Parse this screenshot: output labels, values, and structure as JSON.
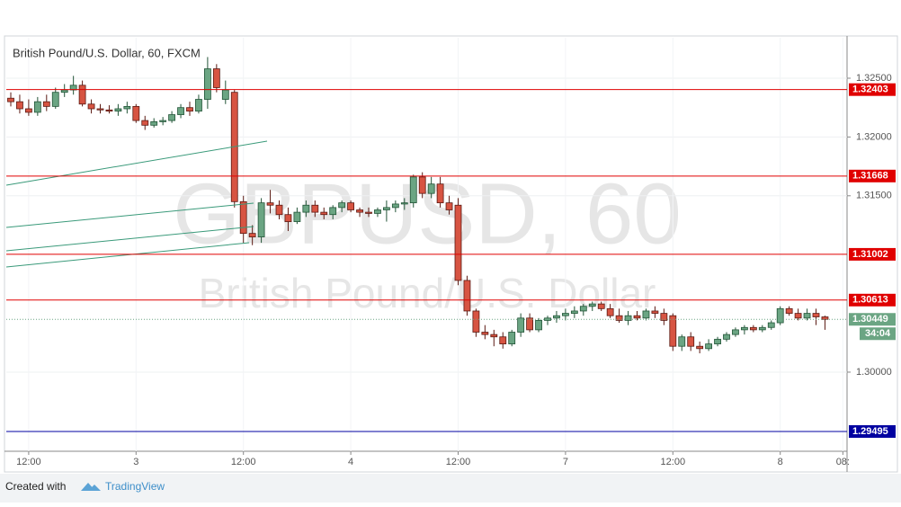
{
  "chart_data": {
    "type": "candlestick",
    "title": "British Pound/U.S. Dollar, 60, FXCM",
    "watermark": "GBPUSD, 60",
    "watermark_subtitle": "British Pound/U.S. Dollar",
    "categories": [
      null,
      null,
      "12:00",
      null,
      null,
      null,
      null,
      null,
      null,
      null,
      null,
      null,
      null,
      null,
      "3",
      null,
      null,
      null,
      null,
      null,
      null,
      null,
      null,
      null,
      null,
      null,
      "12:00",
      null,
      null,
      null,
      null,
      null,
      null,
      null,
      null,
      null,
      null,
      null,
      "4",
      null,
      null,
      null,
      null,
      null,
      null,
      null,
      null,
      null,
      null,
      null,
      "12:00",
      null,
      null,
      null,
      null,
      null,
      null,
      null,
      null,
      null,
      null,
      null,
      "7",
      null,
      null,
      null,
      null,
      null,
      null,
      null,
      null,
      null,
      null,
      null,
      "12:00",
      null,
      null,
      null,
      null,
      null,
      null,
      null,
      null,
      null,
      null,
      null,
      "8",
      null,
      null,
      null,
      null,
      null,
      null,
      "08:"
    ],
    "open": [
      1.3233,
      1.323,
      1.3224,
      1.3221,
      1.323,
      1.3226,
      1.3238,
      1.324,
      1.3244,
      1.3228,
      1.3224,
      1.3223,
      1.3222,
      1.3224,
      1.3226,
      1.3214,
      1.321,
      1.3213,
      1.3214,
      1.3219,
      1.3225,
      1.3222,
      1.3232,
      1.3258,
      1.3232,
      1.3238,
      1.3145,
      1.3118,
      1.3115,
      1.3144,
      1.3142,
      1.3134,
      1.3128,
      1.3136,
      1.3142,
      1.3136,
      1.3134,
      1.314,
      1.3144,
      1.3138,
      1.3136,
      1.3135,
      1.3138,
      1.314,
      1.3143,
      1.3144,
      1.3166,
      1.3152,
      1.316,
      1.3144,
      1.3142,
      1.3078,
      1.3052,
      1.3034,
      1.3032,
      1.303,
      1.3024,
      1.3034,
      1.3046,
      1.3036,
      1.3044,
      1.3046,
      1.3048,
      1.305,
      1.3052,
      1.3056,
      1.3058,
      1.3054,
      1.3048,
      1.3044,
      1.3048,
      1.3046,
      1.3052,
      1.305,
      1.3048,
      1.3022,
      1.303,
      1.3022,
      1.302,
      1.3024,
      1.3028,
      1.3032,
      1.3036,
      1.3038,
      1.3036,
      1.3038,
      1.3042,
      1.3054,
      1.305,
      1.3046,
      1.305,
      1.3047,
      null,
      null
    ],
    "high": [
      1.3238,
      1.3236,
      1.3232,
      1.3234,
      1.3236,
      1.3242,
      1.3245,
      1.3252,
      1.3248,
      1.3232,
      1.3228,
      1.3227,
      1.3228,
      1.323,
      1.3228,
      1.3218,
      1.3216,
      1.3217,
      1.3222,
      1.3228,
      1.323,
      1.3236,
      1.3268,
      1.3262,
      1.3248,
      1.324,
      1.315,
      1.3125,
      1.3148,
      1.3155,
      1.3146,
      1.314,
      1.314,
      1.3146,
      1.3146,
      1.314,
      1.3142,
      1.3146,
      1.3146,
      1.314,
      1.314,
      1.314,
      1.3146,
      1.3146,
      1.3148,
      1.3168,
      1.317,
      1.3166,
      1.3166,
      1.315,
      1.3148,
      1.3082,
      1.3054,
      1.304,
      1.3036,
      1.3034,
      1.3036,
      1.305,
      1.305,
      1.3046,
      1.3048,
      1.3052,
      1.3054,
      1.3056,
      1.3058,
      1.306,
      1.306,
      1.3058,
      1.3054,
      1.3052,
      1.3052,
      1.3054,
      1.3056,
      1.3054,
      1.305,
      1.3032,
      1.3034,
      1.3026,
      1.3028,
      1.303,
      1.3034,
      1.3038,
      1.304,
      1.304,
      1.304,
      1.3044,
      1.3056,
      1.3056,
      1.3054,
      1.3054,
      1.3054,
      1.3048,
      null,
      null
    ],
    "low": [
      1.3226,
      1.322,
      1.3218,
      1.3218,
      1.3222,
      1.3224,
      1.3234,
      1.3236,
      1.3226,
      1.322,
      1.322,
      1.322,
      1.3218,
      1.322,
      1.3212,
      1.3206,
      1.3208,
      1.321,
      1.3212,
      1.3216,
      1.3218,
      1.322,
      1.3224,
      1.3238,
      1.3228,
      1.314,
      1.311,
      1.3108,
      1.311,
      1.3135,
      1.313,
      1.312,
      1.3126,
      1.3132,
      1.3132,
      1.313,
      1.313,
      1.3136,
      1.3136,
      1.3132,
      1.3132,
      1.3132,
      1.3128,
      1.3136,
      1.3138,
      1.314,
      1.3148,
      1.3148,
      1.314,
      1.3134,
      1.3074,
      1.3048,
      1.303,
      1.3028,
      1.3022,
      1.302,
      1.3022,
      1.303,
      1.3034,
      1.3034,
      1.304,
      1.3042,
      1.3044,
      1.3046,
      1.3048,
      1.3052,
      1.3052,
      1.3046,
      1.3042,
      1.304,
      1.3044,
      1.3044,
      1.3046,
      1.304,
      1.3018,
      1.3018,
      1.3018,
      1.3016,
      1.3018,
      1.3022,
      1.3026,
      1.303,
      1.3032,
      1.3034,
      1.3034,
      1.3036,
      1.304,
      1.3048,
      1.3044,
      1.3044,
      1.304,
      1.3036,
      null,
      null
    ],
    "close": [
      1.323,
      1.3224,
      1.3221,
      1.323,
      1.3226,
      1.3238,
      1.324,
      1.3244,
      1.3228,
      1.3224,
      1.3223,
      1.3222,
      1.3224,
      1.3226,
      1.3214,
      1.321,
      1.3213,
      1.3214,
      1.3219,
      1.3225,
      1.3222,
      1.3232,
      1.3258,
      1.3242,
      1.324,
      1.3145,
      1.3118,
      1.3115,
      1.3144,
      1.3142,
      1.3134,
      1.3128,
      1.3136,
      1.3142,
      1.3136,
      1.3134,
      1.314,
      1.3144,
      1.3138,
      1.3136,
      1.3135,
      1.3138,
      1.314,
      1.3143,
      1.3144,
      1.3166,
      1.3152,
      1.316,
      1.3144,
      1.3138,
      1.3078,
      1.3052,
      1.3034,
      1.3032,
      1.303,
      1.3024,
      1.3034,
      1.3046,
      1.3036,
      1.3044,
      1.3046,
      1.3048,
      1.305,
      1.3052,
      1.3056,
      1.3058,
      1.3054,
      1.3048,
      1.3044,
      1.3048,
      1.3046,
      1.3052,
      1.305,
      1.3044,
      1.3022,
      1.303,
      1.3022,
      1.302,
      1.3024,
      1.3028,
      1.3032,
      1.3036,
      1.3038,
      1.3036,
      1.3038,
      1.3042,
      1.3054,
      1.305,
      1.3046,
      1.305,
      1.3047,
      1.30449,
      null,
      null
    ],
    "up_color": "#6ba583",
    "down_color": "#d75442",
    "ylim": [
      1.29327,
      1.32844
    ],
    "yticks": [
      {
        "value": 1.325,
        "label": "1.32500"
      },
      {
        "value": 1.32,
        "label": "1.32000"
      },
      {
        "value": 1.315,
        "label": "1.31500"
      },
      {
        "value": 1.3,
        "label": "1.30000"
      }
    ],
    "grid": true,
    "levels": [
      {
        "value": 1.32403,
        "color": "#e00000"
      },
      {
        "value": 1.31668,
        "color": "#e00000"
      },
      {
        "value": 1.31002,
        "color": "#e00000"
      },
      {
        "value": 1.30613,
        "color": "#e00000"
      },
      {
        "value": 1.29495,
        "color": "#0000a0"
      }
    ],
    "last_price": 1.30449,
    "last_color": "#6ba583",
    "countdown": "34:04"
  },
  "footer": {
    "created_with": "Created with",
    "brand": "TradingView"
  }
}
